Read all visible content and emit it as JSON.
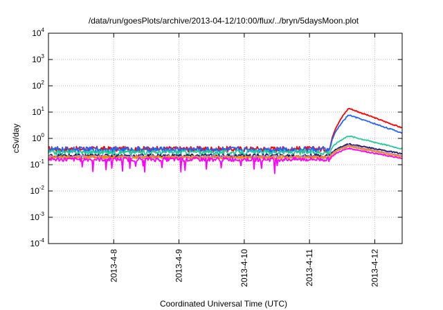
{
  "chart_data": {
    "type": "line",
    "title": "/data/run/goesPlots/archive/2013-04-12/10:00/flux/../bryn/5daysMoon.plot",
    "xlabel": "Coordinated Universal Time (UTC)",
    "ylabel": "cSv/day",
    "yscale": "log",
    "ylim": [
      0.0001,
      10000
    ],
    "xlim": [
      0,
      5.42
    ],
    "grid": true,
    "yticks": [
      {
        "base": "10",
        "exp": "-4"
      },
      {
        "base": "10",
        "exp": "-3"
      },
      {
        "base": "10",
        "exp": "-2"
      },
      {
        "base": "10",
        "exp": "-1"
      },
      {
        "base": "10",
        "exp": "0"
      },
      {
        "base": "10",
        "exp": "1"
      },
      {
        "base": "10",
        "exp": "2"
      },
      {
        "base": "10",
        "exp": "3"
      },
      {
        "base": "10",
        "exp": "4"
      }
    ],
    "xticks": [
      {
        "label": "2013-4-8",
        "pos": 1
      },
      {
        "label": "2013-4-9",
        "pos": 2
      },
      {
        "label": "2013-4-10",
        "pos": 3
      },
      {
        "label": "2013-4-11",
        "pos": 4
      },
      {
        "label": "2013-4-12",
        "pos": 5
      }
    ],
    "onset": 4.32,
    "series": [
      {
        "color": "#ff0000",
        "base": 0.4,
        "peak": 14.0,
        "end": 2.5,
        "noise": 0.3,
        "dips": false
      },
      {
        "color": "#1e64ff",
        "base": 0.38,
        "peak": 7.8,
        "end": 1.6,
        "noise": 0.3,
        "dips": false
      },
      {
        "color": "#22cc99",
        "base": 0.3,
        "peak": 1.25,
        "end": 0.4,
        "noise": 0.25,
        "dips": false
      },
      {
        "color": "#1a1a66",
        "base": 0.22,
        "peak": 0.62,
        "end": 0.26,
        "noise": 0.18,
        "dips": false
      },
      {
        "color": "#bb88cc",
        "base": 0.2,
        "peak": 0.55,
        "end": 0.22,
        "noise": 0.18,
        "dips": false
      },
      {
        "color": "#ff8800",
        "base": 0.19,
        "peak": 0.5,
        "end": 0.2,
        "noise": 0.16,
        "dips": false
      },
      {
        "color": "#ff00ff",
        "base": 0.16,
        "peak": 0.42,
        "end": 0.17,
        "noise": 0.22,
        "dips": true
      }
    ]
  }
}
